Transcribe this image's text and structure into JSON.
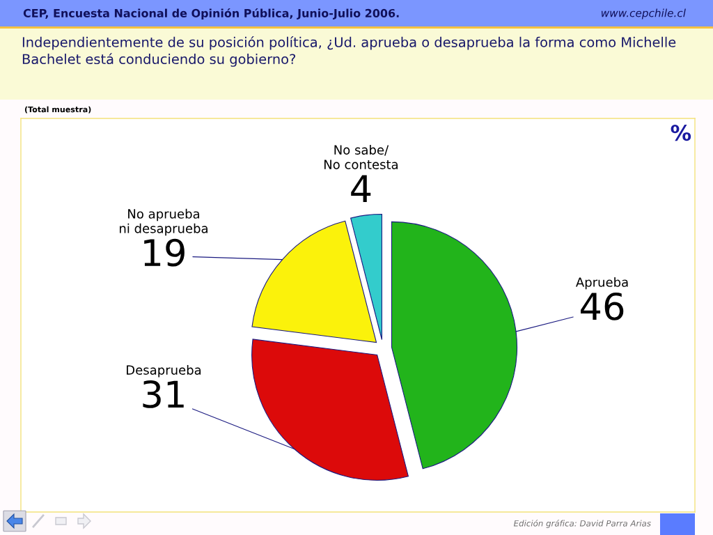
{
  "chart_data": {
    "type": "pie",
    "title": "Independientemente de su posición política, ¿Ud. aprueba o desaprueba la forma como Michelle Bachelet está conduciendo su gobierno?",
    "subtitle": "(Total muestra)",
    "categories": [
      "Aprueba",
      "Desaprueba",
      "No aprueba\nni desaprueba",
      "No sabe/\nNo contesta"
    ],
    "values": [
      46,
      31,
      19,
      4
    ],
    "colors": [
      "#22b41b",
      "#dc0a0a",
      "#fbf20b",
      "#33cccc"
    ],
    "data_labels": true,
    "annotations": [
      "CEP, Encuesta Nacional de Opinión Pública, Junio-Julio 2006.",
      "www.cepchile.cl",
      "%",
      "Edición gráfica: David Parra Arias"
    ]
  }
}
